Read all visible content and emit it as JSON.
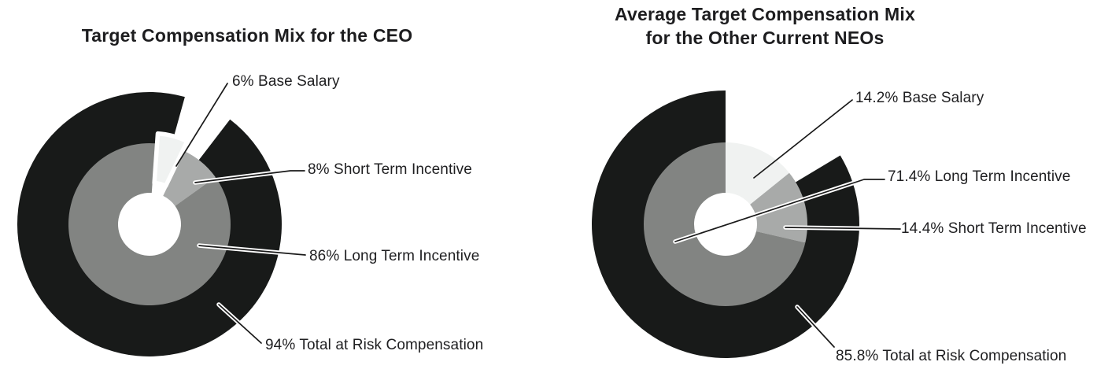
{
  "colors": {
    "dark": "#181a19",
    "mid_gray": "#828482",
    "light_gray": "#a8aaa9",
    "pale_gray": "#f0f2f1",
    "text": "#1f1f21",
    "leader": "#1a1a1a",
    "leader_casing": "#ffffff",
    "background": "#ffffff"
  },
  "chart_data": [
    {
      "type": "pie",
      "title": "Target Compensation Mix for the CEO",
      "title_lines": [
        "Target Compensation Mix for the CEO"
      ],
      "units": "%",
      "legend_position": "callout-right",
      "slices": [
        {
          "name": "Base Salary",
          "value": 6,
          "label": "6% Base Salary",
          "color": "#f0f2f1"
        },
        {
          "name": "Short Term Incentive",
          "value": 8,
          "label": "8% Short Term Incentive",
          "color": "#a8aaa9"
        },
        {
          "name": "Long Term Incentive",
          "value": 86,
          "label": "86% Long Term Incentive",
          "color": "#828482"
        }
      ],
      "outer_ring": {
        "name": "Total at Risk Compensation",
        "value": 94,
        "label": "94% Total at Risk Compensation",
        "color": "#181a19"
      }
    },
    {
      "type": "pie",
      "title": "Average Target Compensation Mix for the Other Current NEOs",
      "title_lines": [
        "Average Target Compensation Mix",
        "for the Other Current NEOs"
      ],
      "units": "%",
      "legend_position": "callout-right",
      "slices": [
        {
          "name": "Base Salary",
          "value": 14.2,
          "label": "14.2% Base Salary",
          "color": "#f0f2f1"
        },
        {
          "name": "Short Term Incentive",
          "value": 14.4,
          "label": "14.4% Short Term Incentive",
          "color": "#a8aaa9"
        },
        {
          "name": "Long Term Incentive",
          "value": 71.4,
          "label": "71.4% Long Term Incentive",
          "color": "#828482"
        }
      ],
      "outer_ring": {
        "name": "Total at Risk Compensation",
        "value": 85.8,
        "label": "85.8% Total at Risk Compensation",
        "color": "#181a19"
      }
    }
  ]
}
